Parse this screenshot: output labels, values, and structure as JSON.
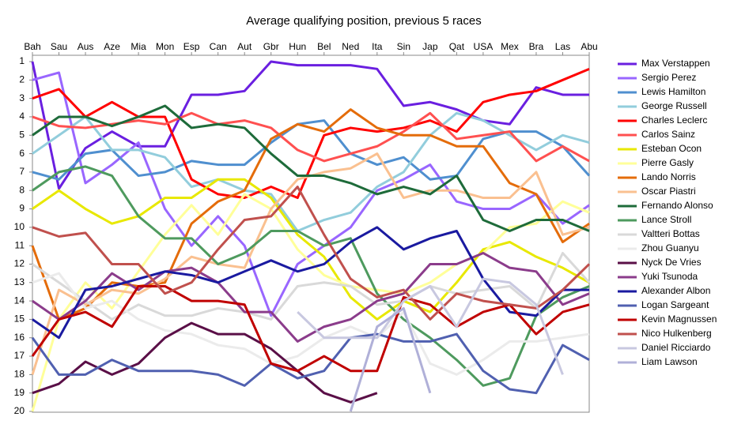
{
  "chart_data": {
    "type": "line",
    "title": "Average qualifying position, previous 5 races",
    "categories": [
      "Bah",
      "Sau",
      "Aus",
      "Aze",
      "Mia",
      "Mon",
      "Esp",
      "Can",
      "Aut",
      "Gbr",
      "Hun",
      "Bel",
      "Ned",
      "Ita",
      "Sin",
      "Jap",
      "Qat",
      "USA",
      "Mex",
      "Bra",
      "Las",
      "Abu"
    ],
    "ylim": [
      20,
      1
    ],
    "yticks": [
      1,
      2,
      3,
      4,
      5,
      6,
      7,
      8,
      9,
      10,
      11,
      12,
      13,
      14,
      15,
      16,
      17,
      18,
      19,
      20
    ],
    "series": [
      {
        "name": "Max Verstappen",
        "color": "#6a1fe0",
        "values": [
          1,
          7.9,
          5.7,
          4.8,
          5.6,
          5.6,
          2.8,
          2.8,
          2.6,
          1,
          1.2,
          1.2,
          1.2,
          1.4,
          3.4,
          3.2,
          3.6,
          4.2,
          4.4,
          2.4,
          2.8,
          2.8
        ]
      },
      {
        "name": "Sergio Perez",
        "color": "#9966ff",
        "values": [
          2,
          1.6,
          7.6,
          6.6,
          5.4,
          9,
          11,
          9.4,
          11,
          14.8,
          12,
          11,
          10,
          8,
          7.4,
          6.6,
          8.6,
          9,
          9,
          8.2,
          9.8,
          8.8
        ]
      },
      {
        "name": "Lewis Hamilton",
        "color": "#4f8fcf",
        "values": [
          7,
          7.4,
          6,
          5.8,
          7.2,
          7,
          6.4,
          6.6,
          6.6,
          5.4,
          4.4,
          4.2,
          6,
          6.6,
          6.2,
          7.4,
          7.2,
          5.2,
          4.8,
          4.8,
          5.6,
          7.2
        ]
      },
      {
        "name": "George Russell",
        "color": "#92cddc",
        "values": [
          6,
          5,
          4,
          5.8,
          5.8,
          6.2,
          7.8,
          7.4,
          8,
          8.2,
          10.2,
          9.6,
          9.2,
          7.8,
          7,
          5,
          3.8,
          4.2,
          5,
          5.8,
          5,
          5.4
        ]
      },
      {
        "name": "Charles Leclerc",
        "color": "#ff0000",
        "values": [
          3,
          2.5,
          4,
          3.2,
          4,
          4,
          7.4,
          8.2,
          8.4,
          7.8,
          8.4,
          5,
          4.6,
          4.8,
          4.6,
          4.2,
          4.8,
          3.2,
          2.8,
          2.6,
          2,
          1.4
        ]
      },
      {
        "name": "Carlos Sainz",
        "color": "#ff5050",
        "values": [
          4,
          4.5,
          4.6,
          4.4,
          4.2,
          4.4,
          3.8,
          4.4,
          4.2,
          4.6,
          5.8,
          6.4,
          6,
          5.6,
          4.8,
          3.8,
          5.2,
          5,
          4.8,
          6.4,
          5.6,
          6.4
        ]
      },
      {
        "name": "Esteban Ocon",
        "color": "#e8e800",
        "values": [
          9,
          8,
          9,
          9.8,
          9.4,
          8.4,
          8.4,
          7.4,
          7.4,
          8.4,
          10.4,
          11.6,
          13.8,
          15,
          14,
          14.6,
          13,
          11.2,
          10.8,
          11.6,
          12.2,
          13
        ]
      },
      {
        "name": "Pierre Gasly",
        "color": "#ffff99",
        "values": [
          20,
          15,
          13,
          14.4,
          12.4,
          10.4,
          8.8,
          10.4,
          8.2,
          9,
          11.2,
          12.6,
          13.2,
          13.4,
          13.6,
          13,
          12,
          11.4,
          10,
          9.8,
          8.6,
          9.2
        ]
      },
      {
        "name": "Lando Norris",
        "color": "#e46c0a",
        "values": [
          11,
          15,
          14.4,
          13,
          13.2,
          13,
          9.8,
          8.6,
          8,
          5.2,
          4.4,
          4.8,
          3.6,
          4.6,
          5,
          5,
          5.6,
          5.6,
          7.6,
          8.2,
          10.8,
          9.8
        ]
      },
      {
        "name": "Oscar Piastri",
        "color": "#fac090",
        "values": [
          18,
          13.4,
          14.2,
          13.4,
          13.6,
          12.8,
          11.6,
          12,
          12.2,
          9,
          7.4,
          7,
          6.8,
          6,
          8.4,
          8,
          8,
          8.4,
          8.4,
          7,
          10.4,
          10
        ]
      },
      {
        "name": "Fernando Alonso",
        "color": "#1e6b3a",
        "values": [
          5,
          4,
          4,
          4.5,
          4,
          3.4,
          4.6,
          4.4,
          4.6,
          6,
          7.2,
          7.2,
          7.6,
          8.2,
          7.8,
          8.2,
          7.2,
          9.6,
          10.2,
          9.6,
          9.6,
          10.2
        ]
      },
      {
        "name": "Lance Stroll",
        "color": "#4e9a5e",
        "values": [
          8,
          7,
          6.7,
          7.2,
          9.4,
          10.6,
          10.6,
          12,
          11.4,
          10.2,
          10.2,
          11,
          10.6,
          13.6,
          15,
          16,
          17.2,
          18.6,
          18.2,
          14.8,
          13.8,
          13.2
        ]
      },
      {
        "name": "Valtteri Bottas",
        "color": "#d9d9d9",
        "values": [
          12,
          13,
          14,
          15,
          14.2,
          14.8,
          14.8,
          14.4,
          14.6,
          15,
          13.2,
          13,
          13.2,
          14.2,
          14,
          13.2,
          13.6,
          13.4,
          13.2,
          14.4,
          11.4,
          13
        ]
      },
      {
        "name": "Zhou Guanyu",
        "color": "#ebebeb",
        "values": [
          13,
          12.5,
          14.4,
          14,
          15,
          15.6,
          15.8,
          16.4,
          16.6,
          17.4,
          17,
          16,
          15.4,
          16,
          14.6,
          17.4,
          18,
          17.2,
          16.2,
          16.2,
          16,
          15.8
        ]
      },
      {
        "name": "Nyck De Vries",
        "color": "#5a0f47",
        "values": [
          19,
          18.5,
          17.3,
          18,
          17.4,
          16,
          15.2,
          15.8,
          15.8,
          16.6,
          17.8,
          19,
          19.5,
          19,
          null,
          null,
          null,
          null,
          null,
          null,
          null,
          null
        ]
      },
      {
        "name": "Yuki Tsunoda",
        "color": "#8b3c8b",
        "values": [
          14,
          15,
          14,
          12.5,
          13.4,
          12.4,
          12.2,
          13,
          14.6,
          14.6,
          16.2,
          15.4,
          15,
          14,
          13.6,
          12,
          12,
          11.4,
          12.2,
          12.4,
          14.2,
          13.6
        ]
      },
      {
        "name": "Alexander Albon",
        "color": "#1a1aa0",
        "values": [
          15,
          16,
          13.4,
          13.2,
          12.8,
          12.4,
          12.6,
          13,
          12.4,
          11.8,
          12.4,
          12,
          10.8,
          10,
          11.2,
          10.6,
          10.2,
          12.8,
          14.6,
          14.8,
          13.4,
          13.4
        ]
      },
      {
        "name": "Logan Sargeant",
        "color": "#5060b0",
        "values": [
          16,
          18,
          18,
          17.2,
          17.8,
          17.8,
          17.8,
          18,
          18.6,
          17.4,
          18.2,
          17.8,
          16,
          15.8,
          16.2,
          16.2,
          15.8,
          17.8,
          18.8,
          19,
          16.4,
          17.2
        ]
      },
      {
        "name": "Kevin Magnussen",
        "color": "#c00000",
        "values": [
          17,
          15,
          14.6,
          15.4,
          13.2,
          13.2,
          14,
          14,
          14.2,
          17.4,
          17.8,
          17,
          17.8,
          17.8,
          13.8,
          14.2,
          15.4,
          14.6,
          14.2,
          15.8,
          14.6,
          14.2
        ]
      },
      {
        "name": "Nico Hulkenberg",
        "color": "#c0504d",
        "values": [
          10,
          10.5,
          10.3,
          12,
          12,
          13.6,
          13,
          11.2,
          9.6,
          9.4,
          7.8,
          10.4,
          12.8,
          13.8,
          13.4,
          15,
          13.6,
          14,
          14.2,
          14.4,
          13.4,
          12
        ]
      },
      {
        "name": "Daniel Ricciardo",
        "color": "#c8c8e0",
        "values": [
          null,
          null,
          null,
          null,
          null,
          null,
          null,
          null,
          null,
          null,
          14.6,
          16,
          16,
          16,
          14,
          13.2,
          15.4,
          12.8,
          13,
          14.2,
          18,
          null
        ]
      },
      {
        "name": "Liam Lawson",
        "color": "#b0b0d8",
        "values": [
          null,
          null,
          null,
          null,
          null,
          null,
          null,
          null,
          null,
          null,
          null,
          null,
          20,
          15.4,
          14.4,
          19,
          null,
          null,
          null,
          null,
          null,
          null
        ]
      }
    ]
  }
}
